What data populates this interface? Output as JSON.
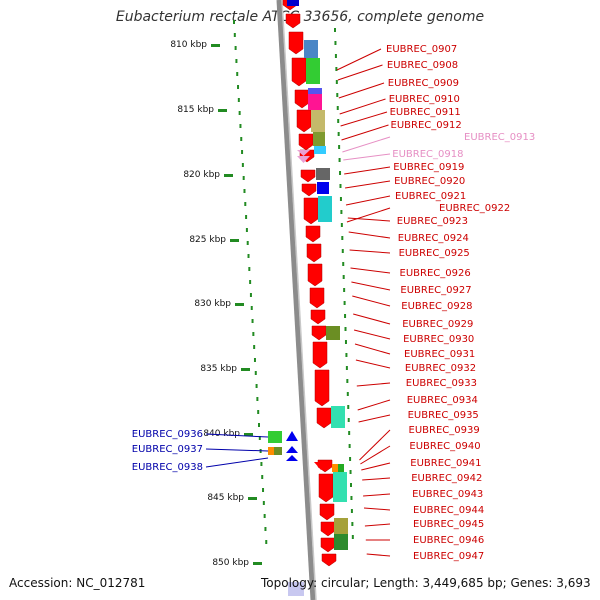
{
  "title": "Eubacterium rectale ATCC 33656, complete genome",
  "footer": {
    "accession": "Accession: NC_012781",
    "summary": "Topology: circular; Length: 3,449,685 bp; Genes: 3,693"
  },
  "ruler": [
    "810 kbp",
    "815 kbp",
    "820 kbp",
    "825 kbp",
    "830 kbp",
    "835 kbp",
    "840 kbp",
    "845 kbp",
    "850 kbp"
  ],
  "colors": {
    "backbone": "#8c8c8c",
    "forward_gene": "#ff0000",
    "tick": "#228b22",
    "label_red": "#cc0000",
    "label_pink": "#e68fc4",
    "label_blue": "#0000aa"
  },
  "genes_right": [
    "EUBREC_0907",
    "EUBREC_0908",
    "EUBREC_0909",
    "EUBREC_0910",
    "EUBREC_0911",
    "EUBREC_0912",
    "EUBREC_0913",
    "EUBREC_0918",
    "EUBREC_0919",
    "EUBREC_0920",
    "EUBREC_0921",
    "EUBREC_0922",
    "EUBREC_0923",
    "EUBREC_0924",
    "EUBREC_0925",
    "EUBREC_0926",
    "EUBREC_0927",
    "EUBREC_0928",
    "EUBREC_0929",
    "EUBREC_0930",
    "EUBREC_0931",
    "EUBREC_0932",
    "EUBREC_0933",
    "EUBREC_0934",
    "EUBREC_0935",
    "EUBREC_0939",
    "EUBREC_0940",
    "EUBREC_0941",
    "EUBREC_0942",
    "EUBREC_0943",
    "EUBREC_0944",
    "EUBREC_0945",
    "EUBREC_0946",
    "EUBREC_0947"
  ],
  "genes_left": [
    "EUBREC_0936",
    "EUBREC_0937",
    "EUBREC_0938"
  ]
}
